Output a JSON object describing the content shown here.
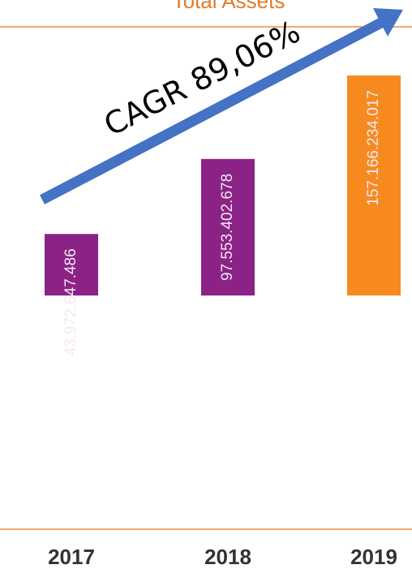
{
  "chart_data": {
    "type": "bar",
    "title": "Total Assets",
    "categories": [
      "2017",
      "2018",
      "2019"
    ],
    "values": [
      43972647486,
      97553402678,
      157166234017
    ],
    "value_labels": [
      "43.972.647.486",
      "97.553.402.678",
      "157.166.234.017"
    ],
    "colors": [
      "#8b2386",
      "#8b2386",
      "#f78a1e"
    ],
    "ylim": [
      -167000000000,
      192000000000
    ],
    "annotation": "CAGR 89,06%"
  }
}
